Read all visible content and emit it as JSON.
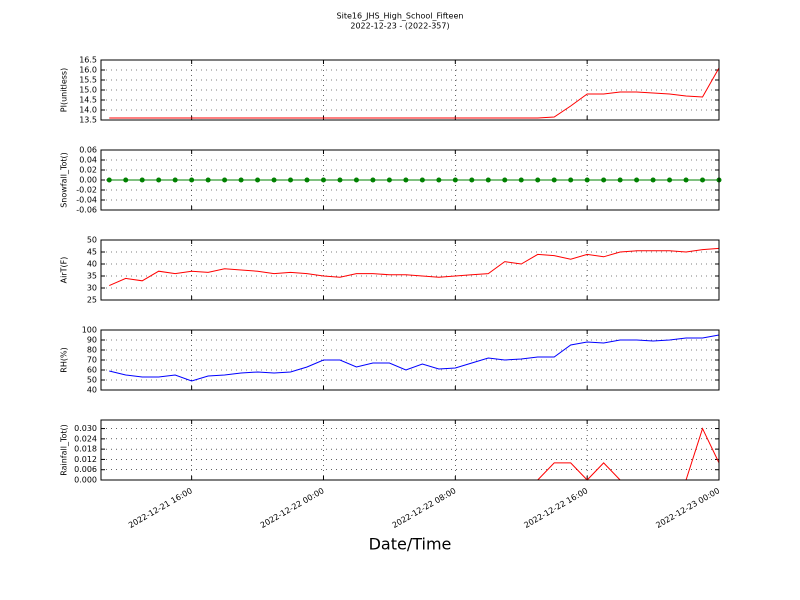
{
  "chart_data": [
    {
      "type": "line",
      "title": "Site16_JHS_High_School_Fifteen",
      "subtitle": "2022-12-23 - (2022-357)",
      "ylabel": "PI(unitless)",
      "x": [
        "2022-12-21 11:00",
        "2022-12-21 12:00",
        "2022-12-21 13:00",
        "2022-12-21 14:00",
        "2022-12-21 15:00",
        "2022-12-21 16:00",
        "2022-12-21 17:00",
        "2022-12-21 18:00",
        "2022-12-21 19:00",
        "2022-12-21 20:00",
        "2022-12-21 21:00",
        "2022-12-21 22:00",
        "2022-12-21 23:00",
        "2022-12-22 00:00",
        "2022-12-22 01:00",
        "2022-12-22 02:00",
        "2022-12-22 03:00",
        "2022-12-22 04:00",
        "2022-12-22 05:00",
        "2022-12-22 06:00",
        "2022-12-22 07:00",
        "2022-12-22 08:00",
        "2022-12-22 09:00",
        "2022-12-22 10:00",
        "2022-12-22 11:00",
        "2022-12-22 12:00",
        "2022-12-22 13:00",
        "2022-12-22 14:00",
        "2022-12-22 15:00",
        "2022-12-22 16:00",
        "2022-12-22 17:00",
        "2022-12-22 18:00",
        "2022-12-22 19:00",
        "2022-12-22 20:00",
        "2022-12-22 21:00",
        "2022-12-22 22:00",
        "2022-12-22 23:00",
        "2022-12-23 00:00"
      ],
      "series": [
        {
          "color": "#ff0000",
          "values": [
            13.6,
            13.6,
            13.6,
            13.6,
            13.6,
            13.6,
            13.6,
            13.6,
            13.6,
            13.6,
            13.6,
            13.6,
            13.6,
            13.6,
            13.6,
            13.6,
            13.6,
            13.6,
            13.6,
            13.6,
            13.6,
            13.6,
            13.6,
            13.6,
            13.6,
            13.6,
            13.6,
            13.65,
            14.2,
            14.8,
            14.8,
            14.9,
            14.9,
            14.85,
            14.8,
            14.7,
            14.65,
            16.1
          ]
        }
      ],
      "xlim": [
        "2022-12-21 10:30",
        "2022-12-23 00:00"
      ],
      "ylim": [
        13.5,
        16.5
      ],
      "yticks": [
        13.5,
        {
          "value": 14,
          "label": "14.0"
        },
        14.5,
        {
          "value": 15,
          "label": "15.0"
        },
        15.5,
        {
          "value": 16,
          "label": "16.0"
        },
        16.5
      ],
      "grid": true
    },
    {
      "type": "line",
      "ylabel": "Snowfall_Tot()",
      "x": [
        "2022-12-21 11:00",
        "2022-12-21 12:00",
        "2022-12-21 13:00",
        "2022-12-21 14:00",
        "2022-12-21 15:00",
        "2022-12-21 16:00",
        "2022-12-21 17:00",
        "2022-12-21 18:00",
        "2022-12-21 19:00",
        "2022-12-21 20:00",
        "2022-12-21 21:00",
        "2022-12-21 22:00",
        "2022-12-21 23:00",
        "2022-12-22 00:00",
        "2022-12-22 01:00",
        "2022-12-22 02:00",
        "2022-12-22 03:00",
        "2022-12-22 04:00",
        "2022-12-22 05:00",
        "2022-12-22 06:00",
        "2022-12-22 07:00",
        "2022-12-22 08:00",
        "2022-12-22 09:00",
        "2022-12-22 10:00",
        "2022-12-22 11:00",
        "2022-12-22 12:00",
        "2022-12-22 13:00",
        "2022-12-22 14:00",
        "2022-12-22 15:00",
        "2022-12-22 16:00",
        "2022-12-22 17:00",
        "2022-12-22 18:00",
        "2022-12-22 19:00",
        "2022-12-22 20:00",
        "2022-12-22 21:00",
        "2022-12-22 22:00",
        "2022-12-22 23:00",
        "2022-12-23 00:00"
      ],
      "series": [
        {
          "color": "#008000",
          "marker": "o",
          "values": [
            0,
            0,
            0,
            0,
            0,
            0,
            0,
            0,
            0,
            0,
            0,
            0,
            0,
            0,
            0,
            0,
            0,
            0,
            0,
            0,
            0,
            0,
            0,
            0,
            0,
            0,
            0,
            0,
            0,
            0,
            0,
            0,
            0,
            0,
            0,
            0,
            0,
            0
          ]
        }
      ],
      "xlim": [
        "2022-12-21 10:30",
        "2022-12-23 00:00"
      ],
      "ylim": [
        -0.06,
        0.06
      ],
      "yticks": [
        -0.06,
        -0.04,
        -0.02,
        {
          "value": 0,
          "label": "0.00"
        },
        0.02,
        0.04,
        0.06
      ],
      "grid": true
    },
    {
      "type": "line",
      "ylabel": "AirT(F)",
      "x": [
        "2022-12-21 11:00",
        "2022-12-21 12:00",
        "2022-12-21 13:00",
        "2022-12-21 14:00",
        "2022-12-21 15:00",
        "2022-12-21 16:00",
        "2022-12-21 17:00",
        "2022-12-21 18:00",
        "2022-12-21 19:00",
        "2022-12-21 20:00",
        "2022-12-21 21:00",
        "2022-12-21 22:00",
        "2022-12-21 23:00",
        "2022-12-22 00:00",
        "2022-12-22 01:00",
        "2022-12-22 02:00",
        "2022-12-22 03:00",
        "2022-12-22 04:00",
        "2022-12-22 05:00",
        "2022-12-22 06:00",
        "2022-12-22 07:00",
        "2022-12-22 08:00",
        "2022-12-22 09:00",
        "2022-12-22 10:00",
        "2022-12-22 11:00",
        "2022-12-22 12:00",
        "2022-12-22 13:00",
        "2022-12-22 14:00",
        "2022-12-22 15:00",
        "2022-12-22 16:00",
        "2022-12-22 17:00",
        "2022-12-22 18:00",
        "2022-12-22 19:00",
        "2022-12-22 20:00",
        "2022-12-22 21:00",
        "2022-12-22 22:00",
        "2022-12-22 23:00",
        "2022-12-23 00:00"
      ],
      "series": [
        {
          "color": "#ff0000",
          "values": [
            31,
            34,
            33,
            37,
            36,
            37,
            36.5,
            38,
            37.5,
            37,
            36,
            36.5,
            36,
            35,
            34.5,
            36,
            36,
            35.5,
            35.5,
            35,
            34.5,
            35,
            35.5,
            36,
            41,
            40,
            44,
            43.5,
            42,
            44,
            43,
            45,
            45.5,
            45.5,
            45.5,
            45,
            46,
            46.5
          ]
        }
      ],
      "xlim": [
        "2022-12-21 10:30",
        "2022-12-23 00:00"
      ],
      "ylim": [
        25,
        50
      ],
      "yticks": [
        25,
        30,
        35,
        40,
        45,
        50
      ],
      "grid": true
    },
    {
      "type": "line",
      "ylabel": "RH(%)",
      "x": [
        "2022-12-21 11:00",
        "2022-12-21 12:00",
        "2022-12-21 13:00",
        "2022-12-21 14:00",
        "2022-12-21 15:00",
        "2022-12-21 16:00",
        "2022-12-21 17:00",
        "2022-12-21 18:00",
        "2022-12-21 19:00",
        "2022-12-21 20:00",
        "2022-12-21 21:00",
        "2022-12-21 22:00",
        "2022-12-21 23:00",
        "2022-12-22 00:00",
        "2022-12-22 01:00",
        "2022-12-22 02:00",
        "2022-12-22 03:00",
        "2022-12-22 04:00",
        "2022-12-22 05:00",
        "2022-12-22 06:00",
        "2022-12-22 07:00",
        "2022-12-22 08:00",
        "2022-12-22 09:00",
        "2022-12-22 10:00",
        "2022-12-22 11:00",
        "2022-12-22 12:00",
        "2022-12-22 13:00",
        "2022-12-22 14:00",
        "2022-12-22 15:00",
        "2022-12-22 16:00",
        "2022-12-22 17:00",
        "2022-12-22 18:00",
        "2022-12-22 19:00",
        "2022-12-22 20:00",
        "2022-12-22 21:00",
        "2022-12-22 22:00",
        "2022-12-22 23:00",
        "2022-12-23 00:00"
      ],
      "series": [
        {
          "color": "#0000ff",
          "values": [
            59,
            55,
            53,
            53,
            55,
            49,
            54,
            55,
            57,
            58,
            57,
            58,
            63,
            70,
            70,
            63,
            67,
            67,
            60,
            66,
            61,
            62,
            67,
            72,
            70,
            71,
            73,
            73,
            85,
            88,
            87,
            90,
            90,
            89,
            90,
            92,
            92,
            95
          ]
        }
      ],
      "xlim": [
        "2022-12-21 10:30",
        "2022-12-23 00:00"
      ],
      "ylim": [
        40,
        100
      ],
      "yticks": [
        40,
        50,
        60,
        70,
        80,
        90,
        100
      ],
      "grid": true
    },
    {
      "type": "line",
      "ylabel": "Rainfall_Tot()",
      "xlabel": "Date/Time",
      "x": [
        "2022-12-21 11:00",
        "2022-12-21 12:00",
        "2022-12-21 13:00",
        "2022-12-21 14:00",
        "2022-12-21 15:00",
        "2022-12-21 16:00",
        "2022-12-21 17:00",
        "2022-12-21 18:00",
        "2022-12-21 19:00",
        "2022-12-21 20:00",
        "2022-12-21 21:00",
        "2022-12-21 22:00",
        "2022-12-21 23:00",
        "2022-12-22 00:00",
        "2022-12-22 01:00",
        "2022-12-22 02:00",
        "2022-12-22 03:00",
        "2022-12-22 04:00",
        "2022-12-22 05:00",
        "2022-12-22 06:00",
        "2022-12-22 07:00",
        "2022-12-22 08:00",
        "2022-12-22 09:00",
        "2022-12-22 10:00",
        "2022-12-22 11:00",
        "2022-12-22 12:00",
        "2022-12-22 13:00",
        "2022-12-22 14:00",
        "2022-12-22 15:00",
        "2022-12-22 16:00",
        "2022-12-22 17:00",
        "2022-12-22 18:00",
        "2022-12-22 19:00",
        "2022-12-22 20:00",
        "2022-12-22 21:00",
        "2022-12-22 22:00",
        "2022-12-22 23:00",
        "2022-12-23 00:00"
      ],
      "series": [
        {
          "color": "#ff0000",
          "values": [
            0,
            0,
            0,
            0,
            0,
            0,
            0,
            0,
            0,
            0,
            0,
            0,
            0,
            0,
            0,
            0,
            0,
            0,
            0,
            0,
            0,
            0,
            0,
            0,
            0,
            0,
            0,
            0.01,
            0.01,
            0,
            0.01,
            0,
            0,
            0,
            0,
            0,
            0.03,
            0.01
          ]
        }
      ],
      "xlim": [
        "2022-12-21 10:30",
        "2022-12-23 00:00"
      ],
      "ylim": [
        0,
        0.035
      ],
      "xticks": [
        "2022-12-21 16:00",
        "2022-12-22 00:00",
        "2022-12-22 08:00",
        "2022-12-22 16:00",
        "2022-12-23 00:00"
      ],
      "yticks": [
        {
          "value": 0,
          "label": "0.000"
        },
        {
          "value": 0.006,
          "label": "0.006"
        },
        {
          "value": 0.012,
          "label": "0.012"
        },
        {
          "value": 0.018,
          "label": "0.018"
        },
        {
          "value": 0.024,
          "label": "0.024"
        },
        {
          "value": 0.03,
          "label": "0.030"
        }
      ],
      "grid": true
    }
  ]
}
